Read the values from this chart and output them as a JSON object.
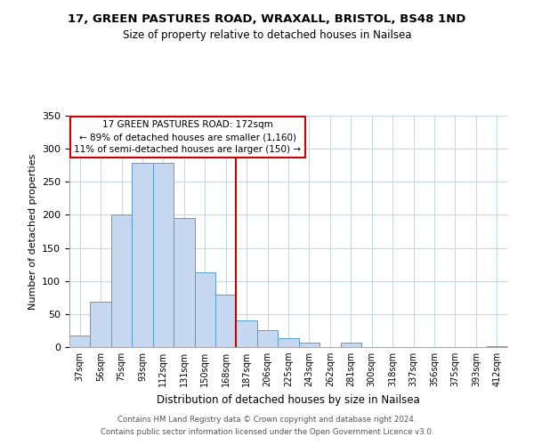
{
  "title_line1": "17, GREEN PASTURES ROAD, WRAXALL, BRISTOL, BS48 1ND",
  "title_line2": "Size of property relative to detached houses in Nailsea",
  "xlabel": "Distribution of detached houses by size in Nailsea",
  "ylabel": "Number of detached properties",
  "bar_labels": [
    "37sqm",
    "56sqm",
    "75sqm",
    "93sqm",
    "112sqm",
    "131sqm",
    "150sqm",
    "168sqm",
    "187sqm",
    "206sqm",
    "225sqm",
    "243sqm",
    "262sqm",
    "281sqm",
    "300sqm",
    "318sqm",
    "337sqm",
    "356sqm",
    "375sqm",
    "393sqm",
    "412sqm"
  ],
  "bar_values": [
    18,
    68,
    200,
    278,
    278,
    195,
    113,
    80,
    40,
    25,
    14,
    7,
    0,
    7,
    0,
    0,
    0,
    0,
    0,
    0,
    2
  ],
  "bar_color": "#c5d8f0",
  "bar_edge_color": "#5b9bd5",
  "ylim": [
    0,
    350
  ],
  "yticks": [
    0,
    50,
    100,
    150,
    200,
    250,
    300,
    350
  ],
  "vline_x_index": 7.5,
  "vline_color": "#cc0000",
  "annotation_title": "17 GREEN PASTURES ROAD: 172sqm",
  "annotation_line1": "← 89% of detached houses are smaller (1,160)",
  "annotation_line2": "11% of semi-detached houses are larger (150) →",
  "footer_line1": "Contains HM Land Registry data © Crown copyright and database right 2024.",
  "footer_line2": "Contains public sector information licensed under the Open Government Licence v3.0.",
  "background_color": "#ffffff",
  "grid_color": "#c8d8e8"
}
